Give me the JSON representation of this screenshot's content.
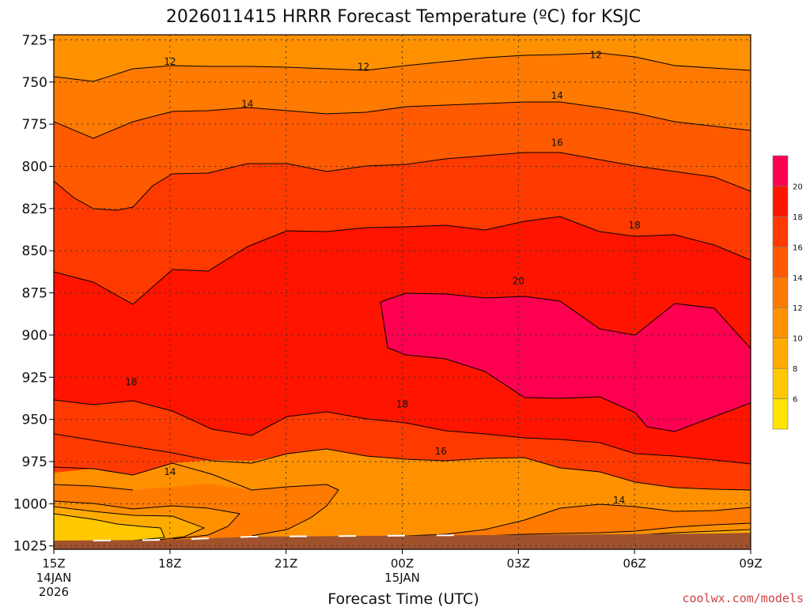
{
  "chart_data": {
    "type": "filled-contour",
    "title": "2026011415 HRRR Forecast Temperature (ºC) for KSJC",
    "xlabel": "Forecast Time (UTC)",
    "ylabel": "",
    "credit": "coolwx.com/models",
    "x_ticks": [
      {
        "hour": 0,
        "label": "15Z",
        "sub1": "14JAN",
        "sub2": "2026"
      },
      {
        "hour": 3,
        "label": "18Z",
        "sub1": "",
        "sub2": ""
      },
      {
        "hour": 6,
        "label": "21Z",
        "sub1": "",
        "sub2": ""
      },
      {
        "hour": 9,
        "label": "00Z",
        "sub1": "15JAN",
        "sub2": ""
      },
      {
        "hour": 12,
        "label": "03Z",
        "sub1": "",
        "sub2": ""
      },
      {
        "hour": 15,
        "label": "06Z",
        "sub1": "",
        "sub2": ""
      },
      {
        "hour": 18,
        "label": "09Z",
        "sub1": "",
        "sub2": ""
      }
    ],
    "x_range_hours": [
      0,
      18
    ],
    "y_ticks": [
      "725",
      "750",
      "775",
      "800",
      "825",
      "850",
      "875",
      "900",
      "925",
      "950",
      "975",
      "1000",
      "1025"
    ],
    "y_range_hpa": [
      722,
      1027
    ],
    "y_inverted": true,
    "grid": true,
    "colorbar": {
      "position": "right",
      "levels": [
        4,
        6,
        8,
        10,
        12,
        14,
        16,
        18,
        20,
        22
      ],
      "labels": [
        "6",
        "8",
        "10",
        "12",
        "14",
        "16",
        "18",
        "20"
      ],
      "colors": [
        "#ffe500",
        "#ffc800",
        "#ffab00",
        "#ff9100",
        "#ff7a00",
        "#ff5a00",
        "#ff3a00",
        "#ff1400",
        "#ff0050"
      ]
    },
    "surface_color": "#a0522d",
    "contour_labels": [
      {
        "text": "12",
        "hour": 3.0,
        "p": 738
      },
      {
        "text": "12",
        "hour": 8.0,
        "p": 741
      },
      {
        "text": "12",
        "hour": 14.0,
        "p": 734
      },
      {
        "text": "14",
        "hour": 5.0,
        "p": 763
      },
      {
        "text": "14",
        "hour": 13.0,
        "p": 758
      },
      {
        "text": "16",
        "hour": 13.0,
        "p": 786
      },
      {
        "text": "18",
        "hour": 15.0,
        "p": 835
      },
      {
        "text": "20",
        "hour": 12.0,
        "p": 868
      },
      {
        "text": "18",
        "hour": 2.0,
        "p": 928
      },
      {
        "text": "18",
        "hour": 9.0,
        "p": 941
      },
      {
        "text": "16",
        "hour": 10.0,
        "p": 969
      },
      {
        "text": "14",
        "hour": 3.0,
        "p": 981
      },
      {
        "text": "14",
        "hour": 14.6,
        "p": 998
      }
    ]
  }
}
